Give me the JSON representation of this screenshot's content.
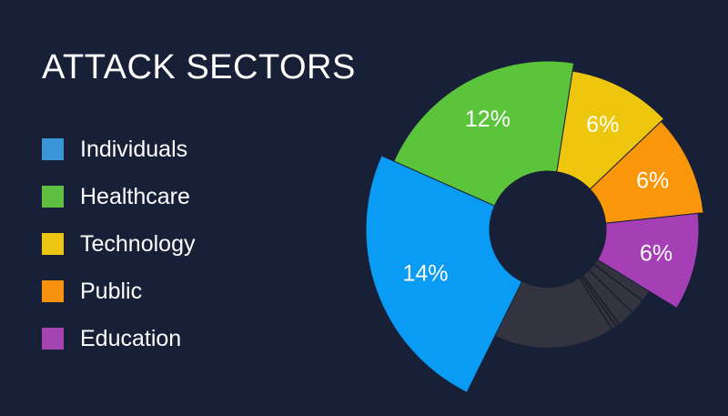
{
  "chart_data": {
    "type": "pie",
    "title": "ATTACK SECTORS",
    "series": [
      {
        "name": "Individuals",
        "value": 14,
        "label": "14%",
        "color": "#0a9bf5",
        "legend_color": "#3b95d6"
      },
      {
        "name": "Healthcare",
        "value": 12,
        "label": "12%",
        "color": "#5cc43b",
        "legend_color": "#5ebf43"
      },
      {
        "name": "Technology",
        "value": 6,
        "label": "6%",
        "color": "#eec60e",
        "legend_color": "#ecc515"
      },
      {
        "name": "Public",
        "value": 6,
        "label": "6%",
        "color": "#f99609",
        "legend_color": "#f7930e"
      },
      {
        "name": "Education",
        "value": 6,
        "label": "6%",
        "color": "#a63fb5",
        "legend_color": "#a442af"
      }
    ],
    "other_color": "#33343f",
    "other_separator_color": "#1c1d28"
  }
}
